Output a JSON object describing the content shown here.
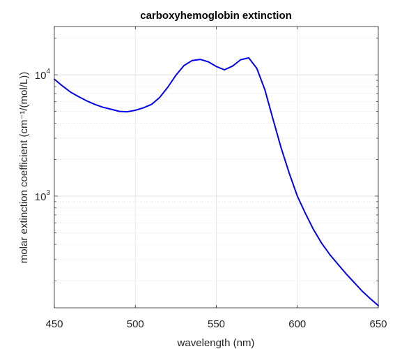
{
  "chart_data": {
    "type": "line",
    "title": "carboxyhemoglobin extinction",
    "xlabel": "wavelength (nm)",
    "ylabel": "molar extinction coefficient (cm⁻¹/(mol/L))",
    "xlim": [
      450,
      650
    ],
    "ylim": [
      120,
      25000
    ],
    "yscale": "log",
    "grid": true,
    "x_ticks": [
      {
        "value": 450,
        "label": "450"
      },
      {
        "value": 500,
        "label": "500"
      },
      {
        "value": 550,
        "label": "550"
      },
      {
        "value": 600,
        "label": "600"
      },
      {
        "value": 650,
        "label": "650"
      }
    ],
    "y_ticks": [
      {
        "value": 1000,
        "base": "10",
        "exp": "3"
      },
      {
        "value": 10000,
        "base": "10",
        "exp": "4"
      }
    ],
    "series": [
      {
        "color": "#0000ee",
        "x": [
          450,
          455,
          460,
          465,
          470,
          475,
          480,
          485,
          490,
          495,
          500,
          505,
          510,
          515,
          520,
          525,
          530,
          535,
          540,
          545,
          550,
          555,
          560,
          565,
          570,
          575,
          580,
          585,
          590,
          595,
          600,
          605,
          610,
          615,
          620,
          625,
          630,
          635,
          640,
          645,
          650
        ],
        "y": [
          9200,
          8100,
          7200,
          6600,
          6100,
          5700,
          5400,
          5200,
          5000,
          4950,
          5100,
          5350,
          5700,
          6500,
          7900,
          9900,
          11900,
          13100,
          13400,
          12800,
          11700,
          11000,
          11800,
          13300,
          13800,
          11300,
          7500,
          4300,
          2500,
          1550,
          1000,
          720,
          530,
          410,
          330,
          275,
          230,
          195,
          165,
          143,
          125
        ]
      }
    ]
  }
}
